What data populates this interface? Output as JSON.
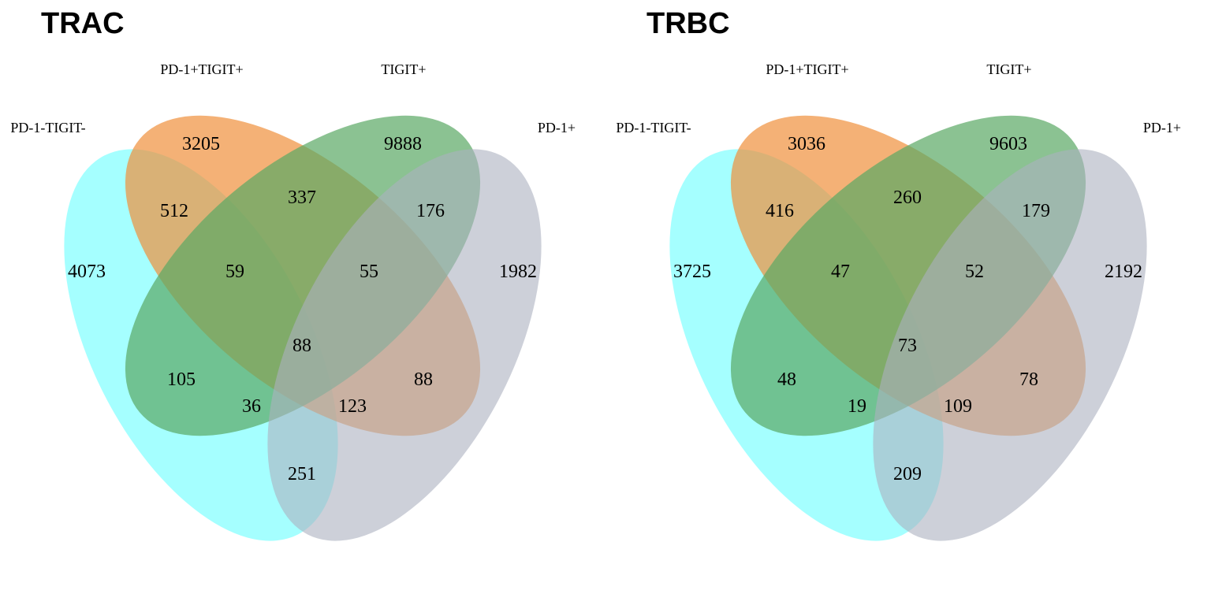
{
  "colors": {
    "PD-1-TIGIT-": "#7fffff",
    "PD-1+TIGIT+": "#f0903c",
    "TIGIT+": "#5aa864",
    "PD-1+": "#acb0bf"
  },
  "panels": [
    {
      "title": "TRAC",
      "sets": {
        "cyan": "PD-1-TIGIT-",
        "orange": "PD-1+TIGIT+",
        "green": "TIGIT+",
        "gray": "PD-1+"
      },
      "counts": {
        "cyan_only": "4073",
        "orange_only": "3205",
        "green_only": "9888",
        "gray_only": "1982",
        "cyan_orange": "512",
        "orange_green": "337",
        "green_gray": "176",
        "cyan_orange_green": "59",
        "orange_green_gray": "55",
        "all_four": "88",
        "cyan_green": "105",
        "orange_gray": "88",
        "cyan_green_gray": "36",
        "cyan_orange_gray": "123",
        "cyan_gray": "251"
      }
    },
    {
      "title": "TRBC",
      "sets": {
        "cyan": "PD-1-TIGIT-",
        "orange": "PD-1+TIGIT+",
        "green": "TIGIT+",
        "gray": "PD-1+"
      },
      "counts": {
        "cyan_only": "3725",
        "orange_only": "3036",
        "green_only": "9603",
        "gray_only": "2192",
        "cyan_orange": "416",
        "orange_green": "260",
        "green_gray": "179",
        "cyan_orange_green": "47",
        "orange_green_gray": "52",
        "all_four": "73",
        "cyan_green": "48",
        "orange_gray": "78",
        "cyan_green_gray": "19",
        "cyan_orange_gray": "109",
        "cyan_gray": "209"
      }
    }
  ]
}
